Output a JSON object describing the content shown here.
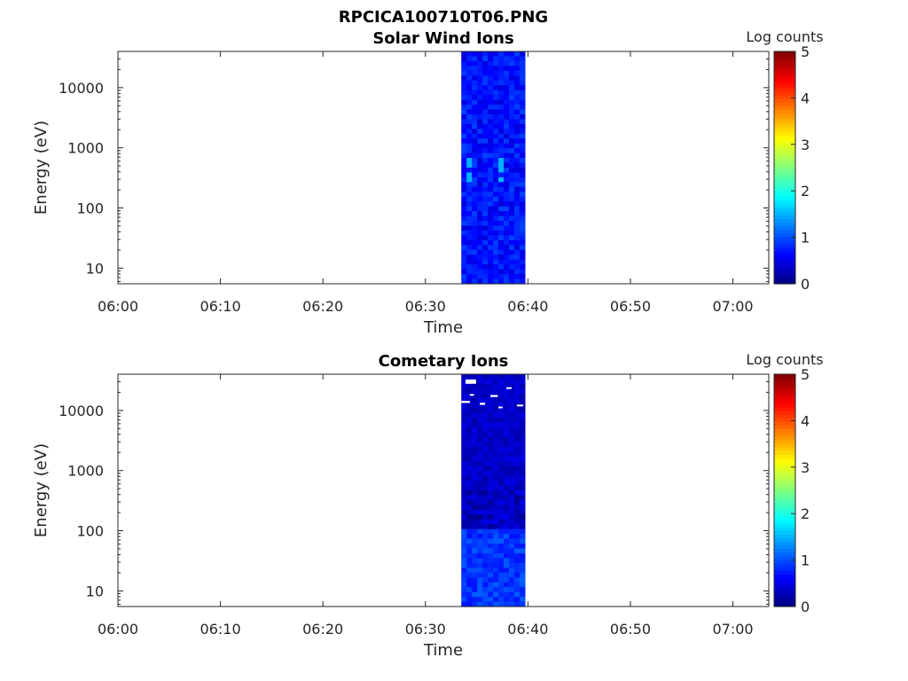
{
  "figure": {
    "title": "RPCICA100710T06.PNG"
  },
  "chart_data": [
    {
      "type": "heatmap",
      "title": "Solar Wind Ions",
      "xlabel": "Time",
      "ylabel": "Energy (eV)",
      "colorbar_label": "Log counts",
      "x_ticks": [
        "06:00",
        "06:10",
        "06:20",
        "06:30",
        "06:40",
        "06:50",
        "07:00"
      ],
      "y_ticks": [
        "10",
        "100",
        "1000",
        "10000"
      ],
      "y_tick_values": [
        10,
        100,
        1000,
        10000
      ],
      "y_scale": "log",
      "ylim": [
        5.5,
        40000
      ],
      "xlim_minutes": [
        0,
        63.5
      ],
      "data_time_range_minutes": [
        33.5,
        39.7
      ],
      "colorbar_ticks": [
        "0",
        "1",
        "2",
        "3",
        "4",
        "5"
      ],
      "clim": [
        0,
        5
      ],
      "colormap": "jet",
      "background": "#ffffff",
      "typical_log_counts": 0.7,
      "peak_log_counts": 1.5
    },
    {
      "type": "heatmap",
      "title": "Cometary Ions",
      "xlabel": "Time",
      "ylabel": "Energy (eV)",
      "colorbar_label": "Log counts",
      "x_ticks": [
        "06:00",
        "06:10",
        "06:20",
        "06:30",
        "06:40",
        "06:50",
        "07:00"
      ],
      "y_ticks": [
        "10",
        "100",
        "1000",
        "10000"
      ],
      "y_tick_values": [
        10,
        100,
        1000,
        10000
      ],
      "y_scale": "log",
      "ylim": [
        5.5,
        40000
      ],
      "xlim_minutes": [
        0,
        63.5
      ],
      "data_time_range_minutes": [
        33.5,
        39.7
      ],
      "colorbar_ticks": [
        "0",
        "1",
        "2",
        "3",
        "4",
        "5"
      ],
      "clim": [
        0,
        5
      ],
      "colormap": "jet",
      "background": "#ffffff",
      "typical_log_counts": 0.3,
      "peak_log_counts": 1.0
    }
  ]
}
